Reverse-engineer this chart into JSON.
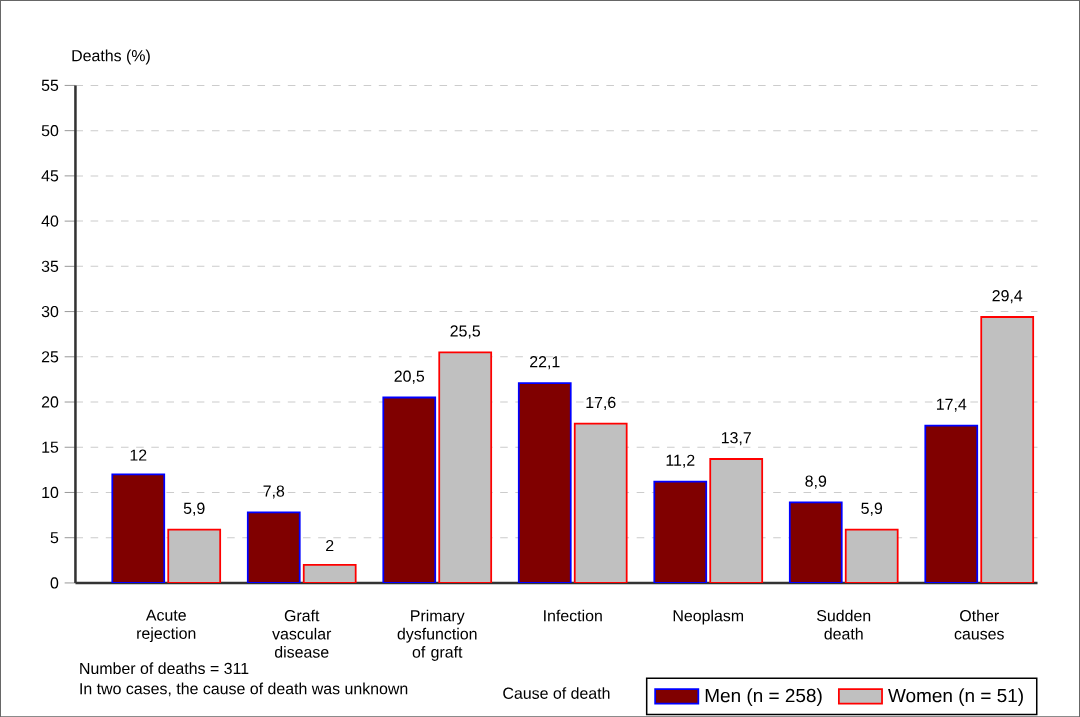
{
  "chart_data": {
    "type": "bar",
    "xlabel": "Cause of death",
    "ylabel": "Deaths (%)",
    "categories": [
      "Acute rejection",
      "Graft vascular disease",
      "Primary dysfunction of graft",
      "Infection",
      "Neoplasm",
      "Sudden death",
      "Other causes"
    ],
    "series": [
      {
        "name": "Men (n = 258)",
        "color": "#800000",
        "values": [
          12,
          7.8,
          20.5,
          22.1,
          11.2,
          8.9,
          17.4
        ],
        "value_labels": [
          "12",
          "7,8",
          "20,5",
          "22,1",
          "11,2",
          "8,9",
          "17,4"
        ]
      },
      {
        "name": "Women (n = 51)",
        "color": "#c0c0c0",
        "values": [
          5.9,
          2,
          25.5,
          17.6,
          13.7,
          5.9,
          29.4
        ],
        "value_labels": [
          "5,9",
          "2",
          "25,5",
          "17,6",
          "13,7",
          "5,9",
          "29,4"
        ]
      }
    ],
    "ylim": [
      0,
      55
    ],
    "yticks": [
      0,
      5,
      10,
      15,
      20,
      25,
      30,
      35,
      40,
      45,
      50,
      55
    ],
    "grid": "y",
    "legend": "bottom right",
    "annotations": [
      "Number of deaths = 311",
      "In two cases, the cause of death was unknown"
    ]
  }
}
